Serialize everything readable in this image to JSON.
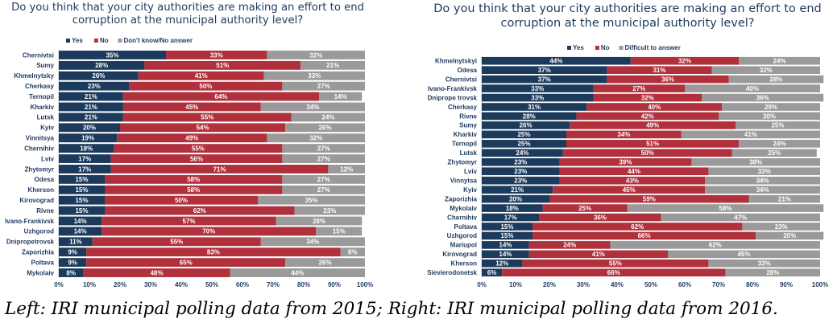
{
  "caption": "Left: IRI municipal polling data from 2015; Right: IRI municipal polling data from 2016.",
  "colors": {
    "yes": "#1b3a5c",
    "no": "#b0303c",
    "other": "#9a9a9a"
  },
  "chart_data": [
    {
      "type": "bar",
      "orientation": "horizontal",
      "stacked": true,
      "title_line1": "Do you think that your city authorities are making an effort to end",
      "title_line2": "corruption at the municipal authority level?",
      "legend_placement": "top",
      "xlim": [
        0,
        100
      ],
      "x_ticks": [
        "0%",
        "10%",
        "20%",
        "30%",
        "40%",
        "50%",
        "60%",
        "70%",
        "80%",
        "90%",
        "100%"
      ],
      "categories": [
        "Chernivtsi",
        "Sumy",
        "Khmelnytsky",
        "Cherkasy",
        "Ternopil",
        "Kharkiv",
        "Lutsk",
        "Kyiv",
        "Vinnitsya",
        "Chernihiv",
        "Lviv",
        "Zhytomyr",
        "Odesa",
        "Kherson",
        "Kirovograd",
        "Rivne",
        "Ivano-Frankivsk",
        "Uzhgorod",
        "Dnipropetrovsk",
        "Zaporizhia",
        "Poltava",
        "Mykolaiv"
      ],
      "series": [
        {
          "name": "Yes",
          "values": [
            35,
            28,
            26,
            23,
            21,
            21,
            21,
            20,
            19,
            18,
            17,
            17,
            15,
            15,
            15,
            15,
            14,
            14,
            11,
            9,
            9,
            8
          ]
        },
        {
          "name": "No",
          "values": [
            33,
            51,
            41,
            50,
            64,
            45,
            55,
            54,
            49,
            55,
            56,
            71,
            58,
            58,
            50,
            62,
            57,
            70,
            55,
            83,
            65,
            48
          ]
        },
        {
          "name": "Don't know/No answer",
          "values": [
            32,
            21,
            33,
            27,
            14,
            34,
            24,
            26,
            32,
            27,
            27,
            12,
            27,
            27,
            35,
            23,
            28,
            15,
            34,
            8,
            26,
            44
          ]
        }
      ]
    },
    {
      "type": "bar",
      "orientation": "horizontal",
      "stacked": true,
      "title_line1": "Do you think that your city authorities are making an effort to end",
      "title_line2": "corruption at the municipal authority level?",
      "legend_placement": "top",
      "xlim": [
        0,
        100
      ],
      "x_ticks": [
        "0%",
        "10%",
        "20%",
        "30%",
        "40%",
        "50%",
        "60%",
        "70%",
        "80%",
        "90%",
        "100%"
      ],
      "categories": [
        "Khmelnytskyi",
        "Odesa",
        "Chernivtsi",
        "Ivano-Frankivsk",
        "Dniprope trovsk",
        "Cherkasy",
        "Rivne",
        "Sumy",
        "Kharkiv",
        "Ternopil",
        "Lutsk",
        "Zhytomyr",
        "Lviv",
        "Vinnytsa",
        "Kyiv",
        "Zaporizhia",
        "Mykolaiv",
        "Chernihiv",
        "Poltava",
        "Uzhgorod",
        "Mariupol",
        "Kirovograd",
        "Kherson",
        "Sievierodonetsk"
      ],
      "series": [
        {
          "name": "Yes",
          "values": [
            44,
            37,
            37,
            33,
            33,
            31,
            28,
            26,
            25,
            25,
            24,
            23,
            23,
            23,
            21,
            20,
            18,
            17,
            15,
            15,
            14,
            14,
            12,
            6
          ]
        },
        {
          "name": "No",
          "values": [
            32,
            31,
            36,
            27,
            32,
            40,
            42,
            49,
            34,
            51,
            50,
            39,
            44,
            43,
            45,
            59,
            25,
            36,
            62,
            66,
            24,
            41,
            55,
            66
          ]
        },
        {
          "name": "Difficult to answer",
          "values": [
            24,
            32,
            28,
            40,
            36,
            29,
            30,
            25,
            41,
            24,
            25,
            38,
            33,
            34,
            34,
            21,
            58,
            47,
            23,
            20,
            62,
            45,
            33,
            28
          ]
        }
      ]
    }
  ]
}
